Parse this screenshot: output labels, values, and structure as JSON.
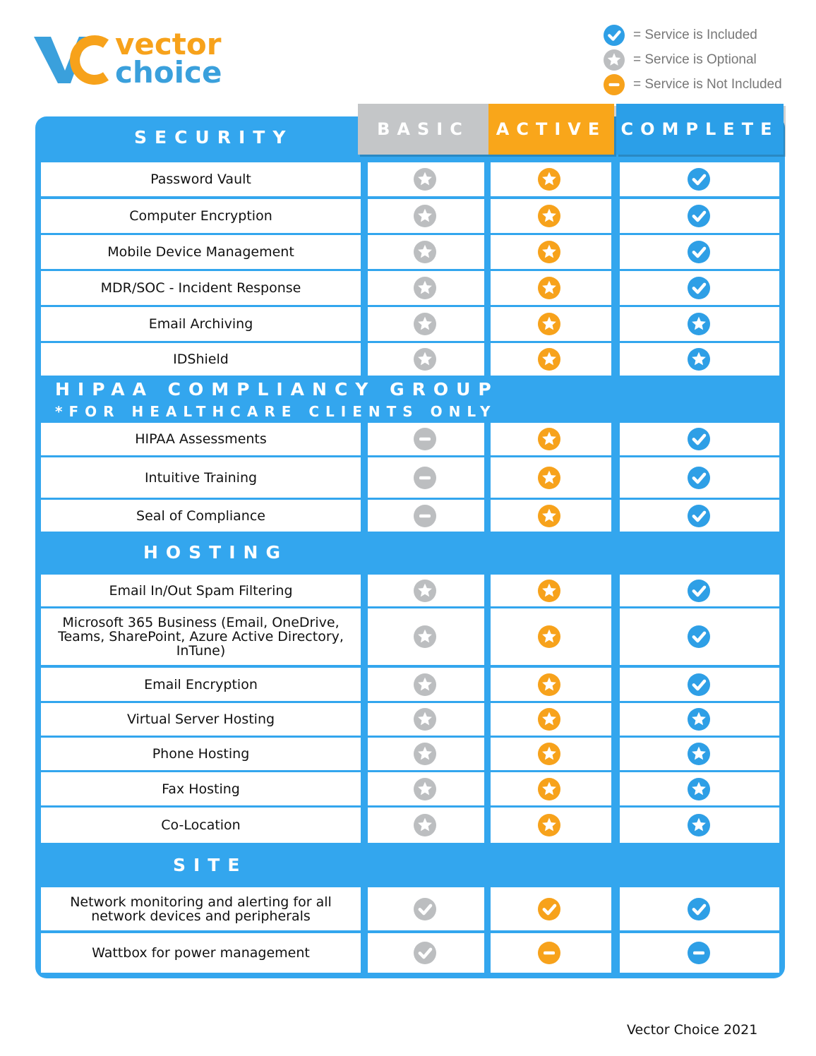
{
  "logo": {
    "line1": "vector",
    "line2": "choice"
  },
  "legend": [
    {
      "label": "= Service is Included"
    },
    {
      "label": "= Service is Optional"
    },
    {
      "label": "= Service is Not Included"
    }
  ],
  "columns": [
    "BASIC",
    "ACTIVE",
    "COMPLETE"
  ],
  "sections": [
    {
      "title": "SECURITY",
      "rows": [
        "Password Vault",
        "Computer Encryption",
        "Mobile Device Management",
        "MDR/SOC - Incident Response",
        "Email Archiving",
        "IDShield"
      ]
    },
    {
      "title": "HIPAA COMPLIANCY GROUP",
      "subtitle": "*FOR HEALTHCARE CLIENTS ONLY",
      "rows": [
        "HIPAA Assessments",
        "Intuitive Training",
        "Seal of Compliance"
      ]
    },
    {
      "title": "HOSTING",
      "rows": [
        "Email In/Out Spam Filtering",
        "Microsoft 365 Business (Email, OneDrive, Teams, SharePoint, Azure Active Directory, InTune)",
        "Email Encryption",
        "Virtual Server Hosting",
        "Phone Hosting",
        "Fax Hosting",
        "Co-Location"
      ]
    },
    {
      "title": "SITE",
      "rows": [
        "Network monitoring and alerting for all network devices and peripherals",
        "Wattbox for power management"
      ]
    }
  ],
  "footer": "Vector Choice 2021"
}
